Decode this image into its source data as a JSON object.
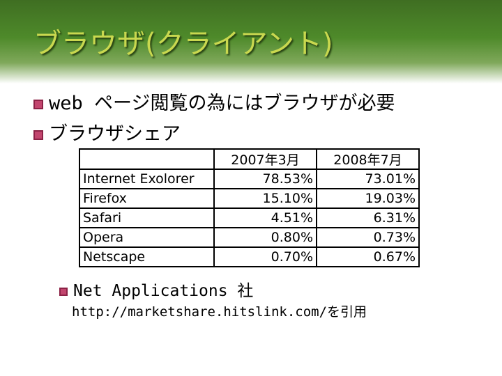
{
  "header": {
    "title": "ブラウザ(クライアント)"
  },
  "bullets": [
    "web ページ閲覧の為にはブラウザが必要",
    "ブラウザシェア"
  ],
  "table": {
    "columns": [
      "2007年3月",
      "2008年7月"
    ],
    "rows": [
      [
        "Internet Exolorer",
        "78.53%",
        "73.01%"
      ],
      [
        "Firefox",
        "15.10%",
        "19.03%"
      ],
      [
        "Safari",
        "4.51%",
        "6.31%"
      ],
      [
        "Opera",
        "0.80%",
        "0.73%"
      ],
      [
        "Netscape",
        "0.70%",
        "0.67%"
      ]
    ]
  },
  "source": {
    "name": "Net Applications 社",
    "url": "http://marketshare.hitslink.com/を引用"
  }
}
